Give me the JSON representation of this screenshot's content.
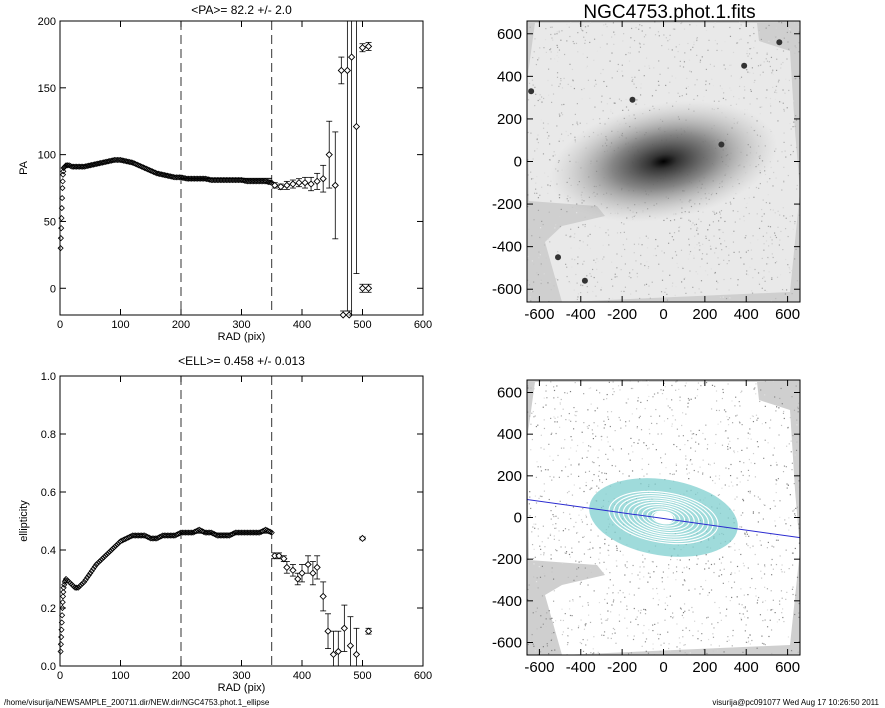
{
  "footer": {
    "path": "/home/visurija/NEWSAMPLE_200711.dir/NEW.dir/NGC4753.phot.1_ellipse",
    "stamp": "visurija@pc091077  Wed Aug 17 10:26:50 2011"
  },
  "chart_data": [
    {
      "type": "scatter",
      "title": "<PA>=  82.2 +/-   2.0",
      "xlabel": "RAD (pix)",
      "ylabel": "PA",
      "xlim": [
        0,
        600
      ],
      "ylim": [
        -20,
        200
      ],
      "xticks": [
        0,
        100,
        200,
        300,
        400,
        500,
        600
      ],
      "yticks": [
        0,
        50,
        100,
        150,
        200
      ],
      "vlines_dashed": [
        200,
        350
      ],
      "mean_line": {
        "x": [
          200,
          350
        ],
        "y": 82.2
      },
      "curve": {
        "x": [
          1,
          2,
          3,
          4,
          5,
          6,
          8,
          10,
          15,
          20,
          30,
          40,
          50,
          60,
          70,
          80,
          90,
          100,
          110,
          120,
          130,
          140,
          150,
          160,
          170,
          180,
          190,
          200,
          210,
          220,
          230,
          240,
          250,
          260,
          270,
          280,
          290,
          300,
          310,
          320,
          330,
          340,
          350
        ],
        "y": [
          30,
          45,
          60,
          75,
          85,
          90,
          91,
          92,
          92,
          91,
          91,
          91,
          92,
          93,
          94,
          95,
          96,
          96,
          95,
          94,
          92,
          90,
          88,
          86,
          85,
          84,
          83,
          83,
          82,
          82,
          82,
          82,
          81,
          81,
          81,
          81,
          81,
          81,
          80,
          80,
          80,
          80,
          79
        ]
      },
      "points": [
        {
          "x": 355,
          "y": 77,
          "err": 2
        },
        {
          "x": 365,
          "y": 76,
          "err": 2
        },
        {
          "x": 375,
          "y": 77,
          "err": 3
        },
        {
          "x": 385,
          "y": 78,
          "err": 3
        },
        {
          "x": 395,
          "y": 79,
          "err": 3
        },
        {
          "x": 405,
          "y": 79,
          "err": 4
        },
        {
          "x": 415,
          "y": 78,
          "err": 5
        },
        {
          "x": 425,
          "y": 80,
          "err": 6
        },
        {
          "x": 435,
          "y": 82,
          "err": 10
        },
        {
          "x": 445,
          "y": 100,
          "err": 25
        },
        {
          "x": 455,
          "y": 77,
          "err": 40
        },
        {
          "x": 465,
          "y": 163,
          "err": 10
        },
        {
          "x": 468,
          "y": -20,
          "err": 3
        },
        {
          "x": 475,
          "y": 163,
          "err": 180
        },
        {
          "x": 478,
          "y": -20,
          "err": 3
        },
        {
          "x": 482,
          "y": 173,
          "err": 200
        },
        {
          "x": 490,
          "y": 121,
          "err": 110
        },
        {
          "x": 500,
          "y": 180,
          "err": 3
        },
        {
          "x": 500,
          "y": 0,
          "err": 3
        },
        {
          "x": 510,
          "y": 181,
          "err": 3
        },
        {
          "x": 510,
          "y": 0,
          "err": 3
        }
      ]
    },
    {
      "type": "scatter",
      "title": "<ELL>= 0.458 +/-  0.013",
      "xlabel": "RAD (pix)",
      "ylabel": "ellipticity",
      "xlim": [
        0,
        600
      ],
      "ylim": [
        0,
        1.0
      ],
      "xticks": [
        0,
        100,
        200,
        300,
        400,
        500,
        600
      ],
      "yticks": [
        0.0,
        0.2,
        0.4,
        0.6,
        0.8,
        1.0
      ],
      "vlines_dashed": [
        200,
        350
      ],
      "mean_line": {
        "x": [
          200,
          350
        ],
        "y": 0.458
      },
      "curve": {
        "x": [
          1,
          2,
          3,
          4,
          5,
          6,
          8,
          10,
          15,
          20,
          25,
          30,
          35,
          40,
          50,
          60,
          70,
          80,
          90,
          100,
          110,
          120,
          130,
          140,
          150,
          160,
          170,
          180,
          190,
          200,
          210,
          220,
          230,
          240,
          250,
          260,
          270,
          280,
          290,
          300,
          310,
          320,
          330,
          340,
          350
        ],
        "y": [
          0.05,
          0.1,
          0.15,
          0.2,
          0.24,
          0.27,
          0.29,
          0.3,
          0.29,
          0.28,
          0.27,
          0.27,
          0.28,
          0.29,
          0.32,
          0.35,
          0.37,
          0.39,
          0.41,
          0.43,
          0.44,
          0.45,
          0.45,
          0.45,
          0.44,
          0.44,
          0.45,
          0.45,
          0.45,
          0.46,
          0.46,
          0.46,
          0.47,
          0.46,
          0.46,
          0.45,
          0.45,
          0.45,
          0.46,
          0.46,
          0.46,
          0.46,
          0.46,
          0.47,
          0.46
        ]
      },
      "points": [
        {
          "x": 355,
          "y": 0.38,
          "err": 0.01
        },
        {
          "x": 362,
          "y": 0.38,
          "err": 0.01
        },
        {
          "x": 370,
          "y": 0.37,
          "err": 0.01
        },
        {
          "x": 375,
          "y": 0.34,
          "err": 0.02
        },
        {
          "x": 385,
          "y": 0.33,
          "err": 0.02
        },
        {
          "x": 393,
          "y": 0.3,
          "err": 0.02
        },
        {
          "x": 400,
          "y": 0.32,
          "err": 0.03
        },
        {
          "x": 410,
          "y": 0.35,
          "err": 0.03
        },
        {
          "x": 418,
          "y": 0.32,
          "err": 0.04
        },
        {
          "x": 425,
          "y": 0.34,
          "err": 0.04
        },
        {
          "x": 435,
          "y": 0.24,
          "err": 0.05
        },
        {
          "x": 443,
          "y": 0.12,
          "err": 0.06
        },
        {
          "x": 452,
          "y": 0.04,
          "err": 0.08
        },
        {
          "x": 460,
          "y": 0.05,
          "err": 0.07
        },
        {
          "x": 470,
          "y": 0.13,
          "err": 0.08
        },
        {
          "x": 480,
          "y": 0.07,
          "err": 0.1
        },
        {
          "x": 490,
          "y": 0.04,
          "err": 0.09
        },
        {
          "x": 500,
          "y": 0.44,
          "err": 0.005
        },
        {
          "x": 510,
          "y": 0.12,
          "err": 0.01
        }
      ]
    },
    {
      "type": "heatmap",
      "title": "NGC4753.phot.1.fits",
      "xlim": [
        -660,
        660
      ],
      "ylim": [
        -660,
        660
      ],
      "xticks": [
        -600,
        -400,
        -200,
        0,
        200,
        400,
        600
      ],
      "yticks": [
        -600,
        -400,
        -200,
        0,
        200,
        400,
        600
      ],
      "colors": {
        "sky": "#cccccc",
        "galaxy": "#000000"
      }
    },
    {
      "type": "heatmap",
      "title": "",
      "xlim": [
        -660,
        660
      ],
      "ylim": [
        -660,
        660
      ],
      "xticks": [
        -600,
        -400,
        -200,
        0,
        200,
        400,
        600
      ],
      "yticks": [
        -600,
        -400,
        -200,
        0,
        200,
        400,
        600
      ],
      "overlay": {
        "major_axis_pa_deg": 82.2,
        "line_color": "#2a2ad0",
        "isophote_color": "#7fcfcf"
      }
    }
  ]
}
